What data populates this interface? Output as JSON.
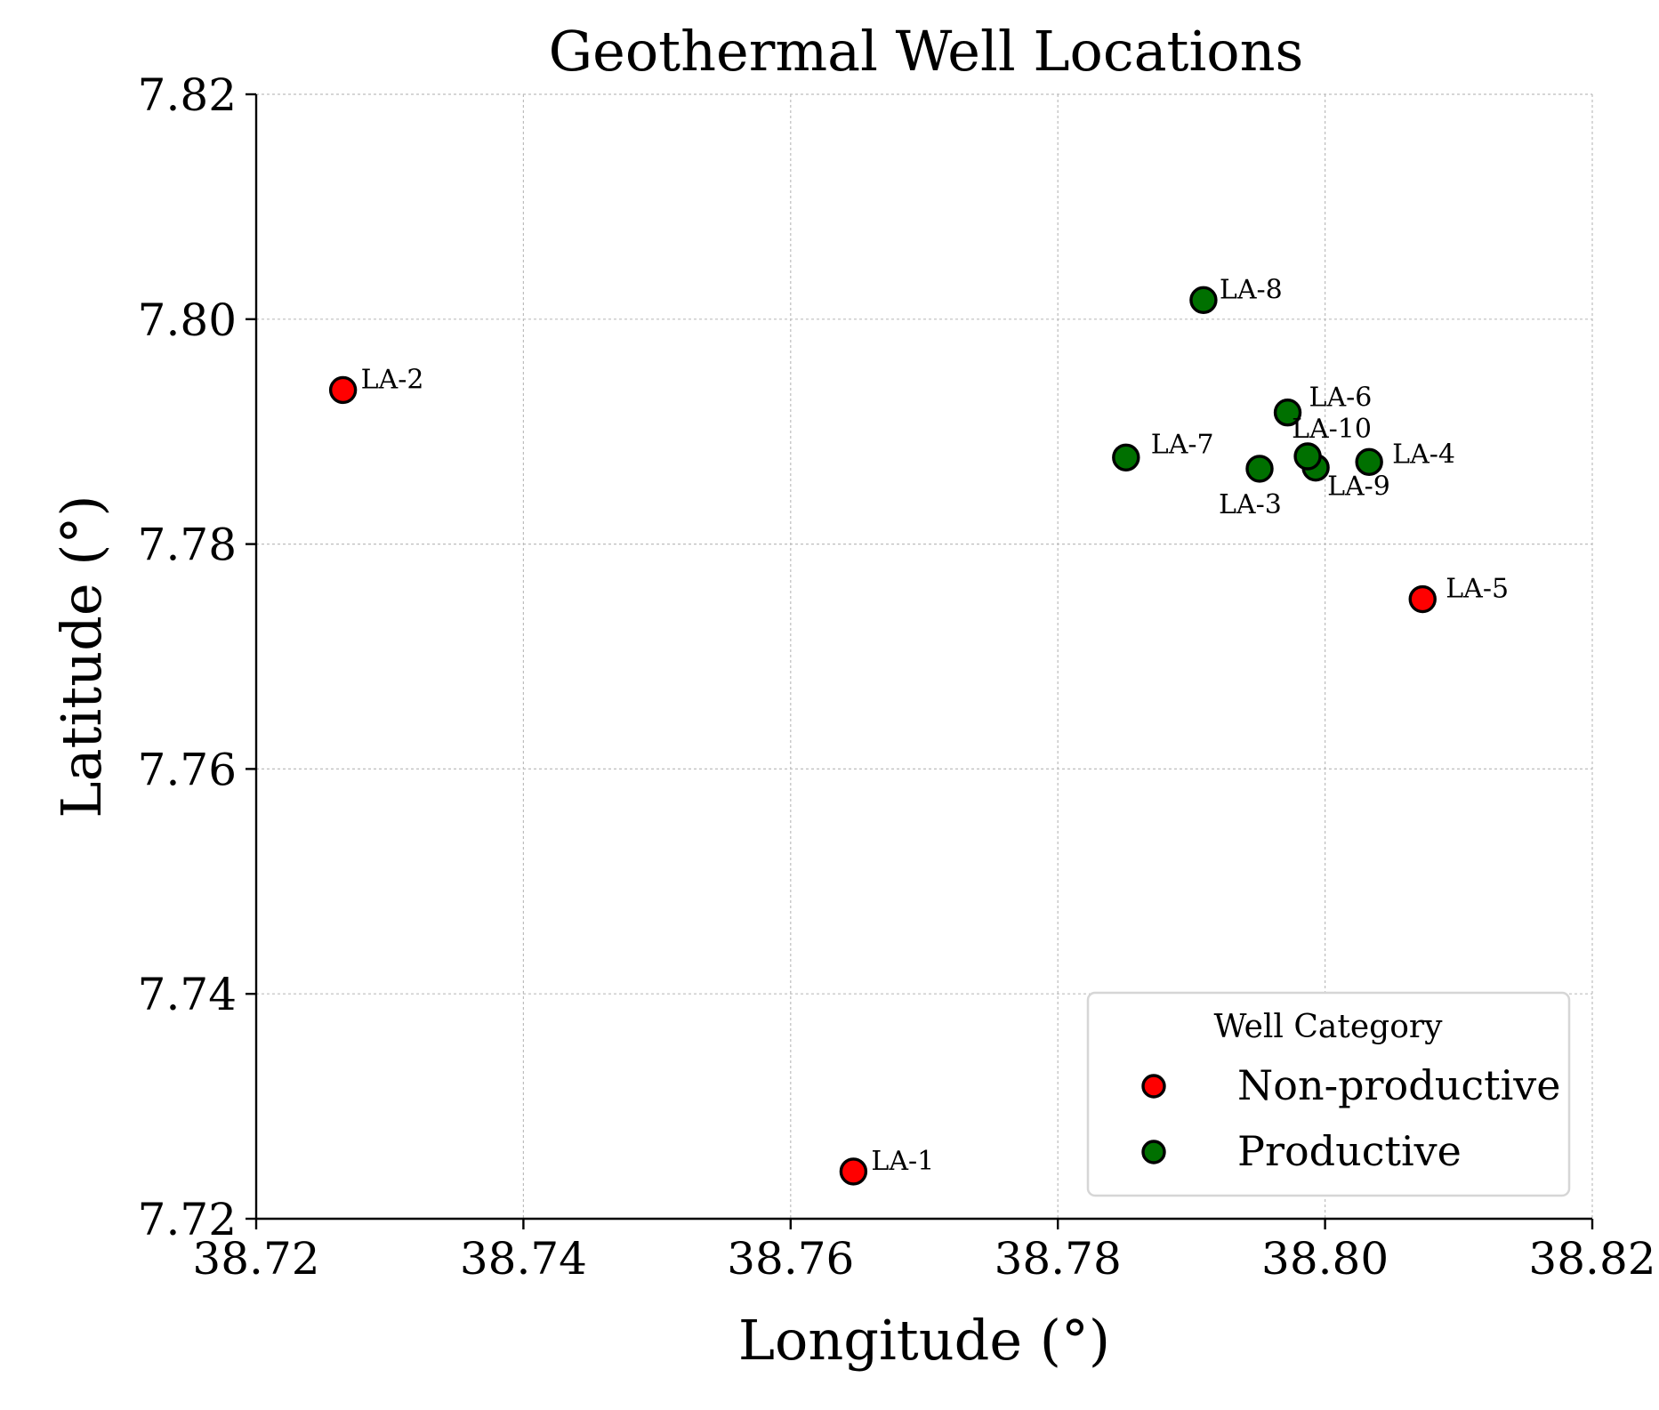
{
  "chart_data": {
    "type": "scatter",
    "title": "Geothermal Well Locations",
    "xlabel": "Longitude (°)",
    "ylabel": "Latitude (°)",
    "xlim": [
      38.72,
      38.82
    ],
    "ylim": [
      7.72,
      7.82
    ],
    "xticks": [
      "38.72",
      "38.74",
      "38.76",
      "38.78",
      "38.80",
      "38.82"
    ],
    "yticks": [
      "7.72",
      "7.74",
      "7.76",
      "7.78",
      "7.80",
      "7.82"
    ],
    "grid": true,
    "legend": {
      "title": "Well Category",
      "position": "lower-right",
      "entries": [
        {
          "label": "Non-productive",
          "color": "#ff0000"
        },
        {
          "label": "Productive",
          "color": "#007000"
        }
      ]
    },
    "series": [
      {
        "name": "Non-productive",
        "color": "#ff0000",
        "points": [
          {
            "label": "LA-1",
            "x": 38.7647,
            "y": 7.7242
          },
          {
            "label": "LA-2",
            "x": 38.7265,
            "y": 7.7937
          },
          {
            "label": "LA-5",
            "x": 38.8073,
            "y": 7.7751
          }
        ]
      },
      {
        "name": "Productive",
        "color": "#007000",
        "points": [
          {
            "label": "LA-3",
            "x": 38.7951,
            "y": 7.7867
          },
          {
            "label": "LA-4",
            "x": 38.8033,
            "y": 7.7873
          },
          {
            "label": "LA-6",
            "x": 38.7972,
            "y": 7.7917
          },
          {
            "label": "LA-7",
            "x": 38.7851,
            "y": 7.7877
          },
          {
            "label": "LA-8",
            "x": 38.7909,
            "y": 7.8017
          },
          {
            "label": "LA-9",
            "x": 38.7993,
            "y": 7.7868
          },
          {
            "label": "LA-10",
            "x": 38.7987,
            "y": 7.7878
          }
        ]
      }
    ]
  }
}
